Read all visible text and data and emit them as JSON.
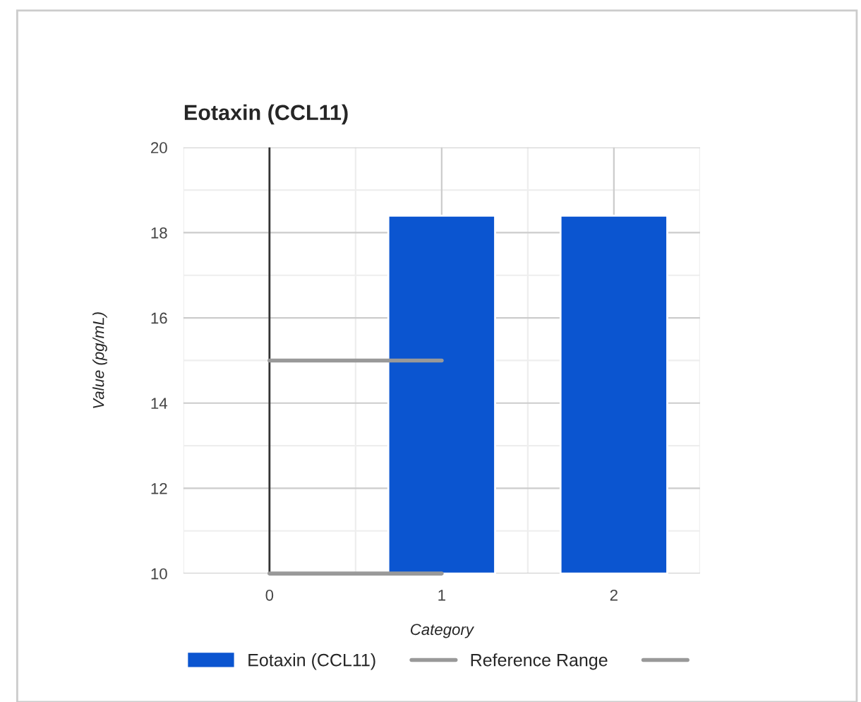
{
  "chart_data": {
    "type": "bar",
    "title": "Eotaxin (CCL11)",
    "xlabel": "Category",
    "ylabel": "Value (pg/mL)",
    "series": [
      {
        "name": "Eotaxin (CCL11)",
        "color": "#0b55d0",
        "x": [
          1,
          2
        ],
        "values": [
          18.4,
          18.4
        ]
      },
      {
        "name": "Reference Range",
        "type": "line",
        "color": "#999999",
        "x": [
          0,
          1
        ],
        "values": [
          15,
          15
        ]
      },
      {
        "type": "line",
        "color": "#999999",
        "x": [
          0,
          1
        ],
        "values": [
          10,
          10
        ]
      }
    ],
    "xlim": [
      -0.5,
      2.5
    ],
    "xticks": [
      0,
      1,
      2
    ],
    "ylim": [
      10,
      20
    ],
    "yticks": [
      10,
      12,
      14,
      16,
      18,
      20
    ],
    "ref_lines": [
      {
        "axis": "x",
        "value": 0,
        "color": "#333333"
      }
    ],
    "grid": true,
    "legend": "bottom left",
    "marker": "none",
    "line_style": "solid"
  }
}
